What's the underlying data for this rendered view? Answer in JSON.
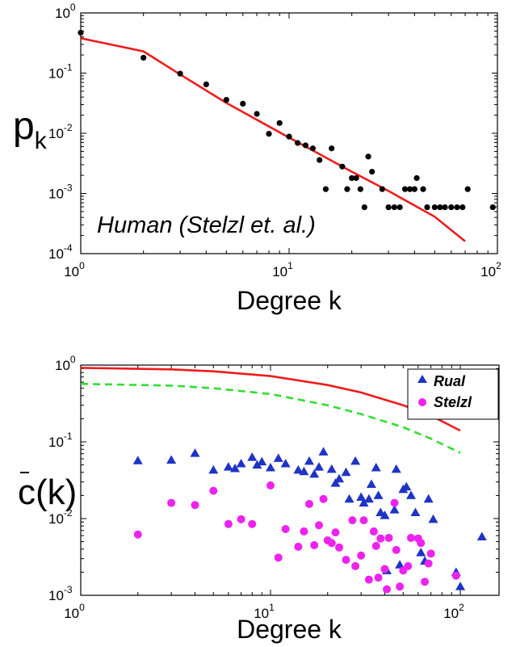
{
  "chart_data": [
    {
      "type": "scatter",
      "xlabel": "Degree k",
      "ylabel": "p",
      "ylabel_sub": "k",
      "annotation": "Human (Stelzl et. al.)",
      "xscale": "log",
      "yscale": "log",
      "xlim": [
        1,
        100
      ],
      "ylim": [
        0.0001,
        1
      ],
      "x_ticks": [
        {
          "base": "10",
          "exp": "0"
        },
        {
          "base": "10",
          "exp": "1"
        },
        {
          "base": "10",
          "exp": "2"
        }
      ],
      "y_ticks": [
        {
          "base": "10",
          "exp": "-4"
        },
        {
          "base": "10",
          "exp": "-3"
        },
        {
          "base": "10",
          "exp": "-2"
        },
        {
          "base": "10",
          "exp": "-1"
        },
        {
          "base": "10",
          "exp": "0"
        }
      ],
      "series": [
        {
          "kind": "points",
          "color": "#000000",
          "points": [
            [
              1,
              0.47
            ],
            [
              2,
              0.18
            ],
            [
              3,
              0.098
            ],
            [
              4,
              0.065
            ],
            [
              5,
              0.036
            ],
            [
              6,
              0.031
            ],
            [
              7,
              0.021
            ],
            [
              8,
              0.0098
            ],
            [
              9,
              0.0148
            ],
            [
              10,
              0.0088
            ],
            [
              11,
              0.0069
            ],
            [
              12,
              0.0063
            ],
            [
              13,
              0.0056
            ],
            [
              14,
              0.0036
            ],
            [
              15,
              0.00118
            ],
            [
              16,
              0.0056
            ],
            [
              18,
              0.0028
            ],
            [
              19,
              0.00118
            ],
            [
              20,
              0.0018
            ],
            [
              21,
              0.0018
            ],
            [
              22,
              0.00118
            ],
            [
              23,
              0.00059
            ],
            [
              24,
              0.0041
            ],
            [
              25,
              0.0023
            ],
            [
              28,
              0.00118
            ],
            [
              30,
              0.00059
            ],
            [
              32,
              0.00059
            ],
            [
              34,
              0.00059
            ],
            [
              36,
              0.00118
            ],
            [
              38,
              0.00118
            ],
            [
              40,
              0.00118
            ],
            [
              41,
              0.0018
            ],
            [
              44,
              0.00118
            ],
            [
              46,
              0.00059
            ],
            [
              50,
              0.00059
            ],
            [
              53,
              0.00059
            ],
            [
              56,
              0.00059
            ],
            [
              60,
              0.00059
            ],
            [
              64,
              0.00059
            ],
            [
              68,
              0.00059
            ],
            [
              72,
              0.00118
            ],
            [
              95,
              0.00059
            ]
          ]
        },
        {
          "kind": "line",
          "color": "#ee1c1c",
          "points": [
            [
              1,
              0.38
            ],
            [
              2,
              0.23
            ],
            [
              3,
              0.095
            ],
            [
              5,
              0.032
            ],
            [
              10,
              0.0085
            ],
            [
              20,
              0.0023
            ],
            [
              30,
              0.0011
            ],
            [
              50,
              0.00041
            ],
            [
              70,
              0.00016
            ]
          ]
        }
      ]
    },
    {
      "type": "scatter",
      "xlabel": "Degree k",
      "ylabel": "c(k)",
      "xscale": "log",
      "yscale": "log",
      "xlim": [
        1,
        160
      ],
      "ylim": [
        0.001,
        1
      ],
      "x_ticks": [
        {
          "base": "10",
          "exp": "0"
        },
        {
          "base": "10",
          "exp": "1"
        },
        {
          "base": "10",
          "exp": "2"
        }
      ],
      "y_ticks": [
        {
          "base": "10",
          "exp": "-3"
        },
        {
          "base": "10",
          "exp": "-2"
        },
        {
          "base": "10",
          "exp": "-1"
        },
        {
          "base": "10",
          "exp": "0"
        }
      ],
      "legend_position": "top-right",
      "series": [
        {
          "name": "Rual",
          "kind": "triangles",
          "color": "#1f33c4",
          "points": [
            [
              2,
              0.057
            ],
            [
              3,
              0.058
            ],
            [
              4,
              0.071
            ],
            [
              5,
              0.043
            ],
            [
              6,
              0.047
            ],
            [
              6.5,
              0.045
            ],
            [
              7,
              0.052
            ],
            [
              8,
              0.063
            ],
            [
              8.5,
              0.05
            ],
            [
              9,
              0.055
            ],
            [
              10,
              0.046
            ],
            [
              11,
              0.061
            ],
            [
              12,
              0.052
            ],
            [
              14,
              0.043
            ],
            [
              15,
              0.041
            ],
            [
              16,
              0.056
            ],
            [
              17,
              0.038
            ],
            [
              18,
              0.047
            ],
            [
              19,
              0.074
            ],
            [
              21,
              0.044
            ],
            [
              22,
              0.029
            ],
            [
              23,
              0.033
            ],
            [
              25,
              0.04
            ],
            [
              26,
              0.018
            ],
            [
              28,
              0.056
            ],
            [
              30,
              0.019
            ],
            [
              31,
              0.016
            ],
            [
              33,
              0.018
            ],
            [
              34,
              0.028
            ],
            [
              36,
              0.046
            ],
            [
              37,
              0.02
            ],
            [
              38,
              0.012
            ],
            [
              40,
              0.011
            ],
            [
              41,
              0.0021
            ],
            [
              45,
              0.013
            ],
            [
              46,
              0.044
            ],
            [
              48,
              0.0025
            ],
            [
              50,
              0.024
            ],
            [
              52,
              0.026
            ],
            [
              55,
              0.02
            ],
            [
              58,
              0.012
            ],
            [
              62,
              0.0036
            ],
            [
              65,
              0.0028
            ],
            [
              68,
              0.018
            ],
            [
              72,
              0.0098
            ],
            [
              95,
              0.002
            ],
            [
              100,
              0.0013
            ],
            [
              130,
              0.0058
            ]
          ]
        },
        {
          "name": "Stelzl",
          "kind": "circles",
          "color": "#ee22ee",
          "points": [
            [
              2,
              0.0062
            ],
            [
              3,
              0.016
            ],
            [
              4,
              0.015
            ],
            [
              5,
              0.023
            ],
            [
              6,
              0.0085
            ],
            [
              7,
              0.0098
            ],
            [
              8,
              0.0085
            ],
            [
              10,
              0.027
            ],
            [
              11,
              0.0031
            ],
            [
              12,
              0.0073
            ],
            [
              14,
              0.0043
            ],
            [
              15,
              0.0068
            ],
            [
              16,
              0.0155
            ],
            [
              17,
              0.0045
            ],
            [
              18,
              0.0082
            ],
            [
              19,
              0.018
            ],
            [
              20,
              0.0052
            ],
            [
              21,
              0.0048
            ],
            [
              22,
              0.0066
            ],
            [
              23,
              0.0042
            ],
            [
              25,
              0.0029
            ],
            [
              27,
              0.0095
            ],
            [
              28,
              0.0024
            ],
            [
              30,
              0.0033
            ],
            [
              31,
              0.0095
            ],
            [
              33,
              0.0016
            ],
            [
              35,
              0.0068
            ],
            [
              36,
              0.0044
            ],
            [
              37,
              0.0017
            ],
            [
              38,
              0.0055
            ],
            [
              40,
              0.0022
            ],
            [
              41,
              0.0012
            ],
            [
              42,
              0.0056
            ],
            [
              45,
              0.016
            ],
            [
              46,
              0.0039
            ],
            [
              48,
              0.0013
            ],
            [
              50,
              0.0021
            ],
            [
              53,
              0.0024
            ],
            [
              55,
              0.0056
            ],
            [
              60,
              0.0055
            ],
            [
              62,
              0.0048
            ],
            [
              65,
              0.0015
            ],
            [
              68,
              0.0026
            ],
            [
              70,
              0.0035
            ],
            [
              95,
              0.0018
            ]
          ]
        },
        {
          "kind": "line",
          "color": "#ee1c1c",
          "points": [
            [
              1,
              0.92
            ],
            [
              3,
              0.88
            ],
            [
              5,
              0.83
            ],
            [
              10,
              0.72
            ],
            [
              20,
              0.55
            ],
            [
              30,
              0.44
            ],
            [
              50,
              0.3
            ],
            [
              70,
              0.22
            ],
            [
              100,
              0.14
            ]
          ]
        },
        {
          "kind": "dashed-line",
          "color": "#33dd33",
          "points": [
            [
              1,
              0.57
            ],
            [
              3,
              0.54
            ],
            [
              5,
              0.5
            ],
            [
              10,
              0.42
            ],
            [
              20,
              0.3
            ],
            [
              30,
              0.23
            ],
            [
              50,
              0.155
            ],
            [
              70,
              0.11
            ],
            [
              100,
              0.072
            ]
          ]
        }
      ]
    }
  ]
}
